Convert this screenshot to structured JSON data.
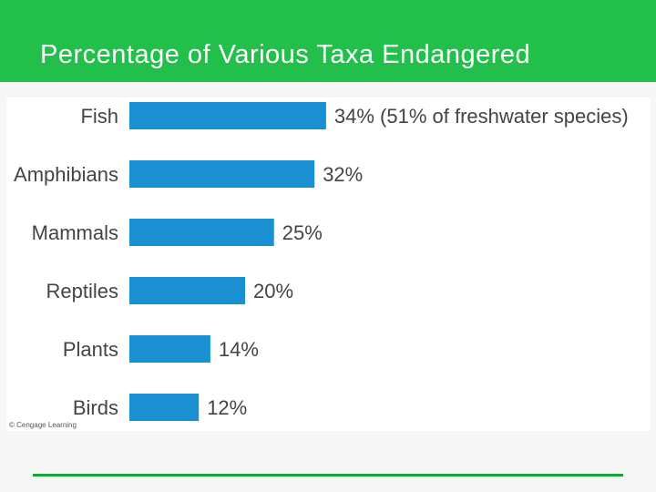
{
  "slide": {
    "title": "Percentage of Various Taxa Endangered",
    "credit": "© Cengage Learning"
  },
  "colors": {
    "header": "#22bf4a",
    "bar": "#1a8fd1",
    "footer_line": "#1aa53a",
    "label": "#444444"
  },
  "chart_data": {
    "type": "bar",
    "orientation": "horizontal",
    "categories": [
      "Fish",
      "Amphibians",
      "Mammals",
      "Reptiles",
      "Plants",
      "Birds"
    ],
    "values": [
      34,
      32,
      25,
      20,
      14,
      12
    ],
    "data_labels": [
      "34% (51% of freshwater species)",
      "32%",
      "25%",
      "20%",
      "14%",
      "12%"
    ],
    "unit": "%",
    "title": "",
    "xlabel": "",
    "ylabel": "",
    "grid": false,
    "legend": "none"
  }
}
